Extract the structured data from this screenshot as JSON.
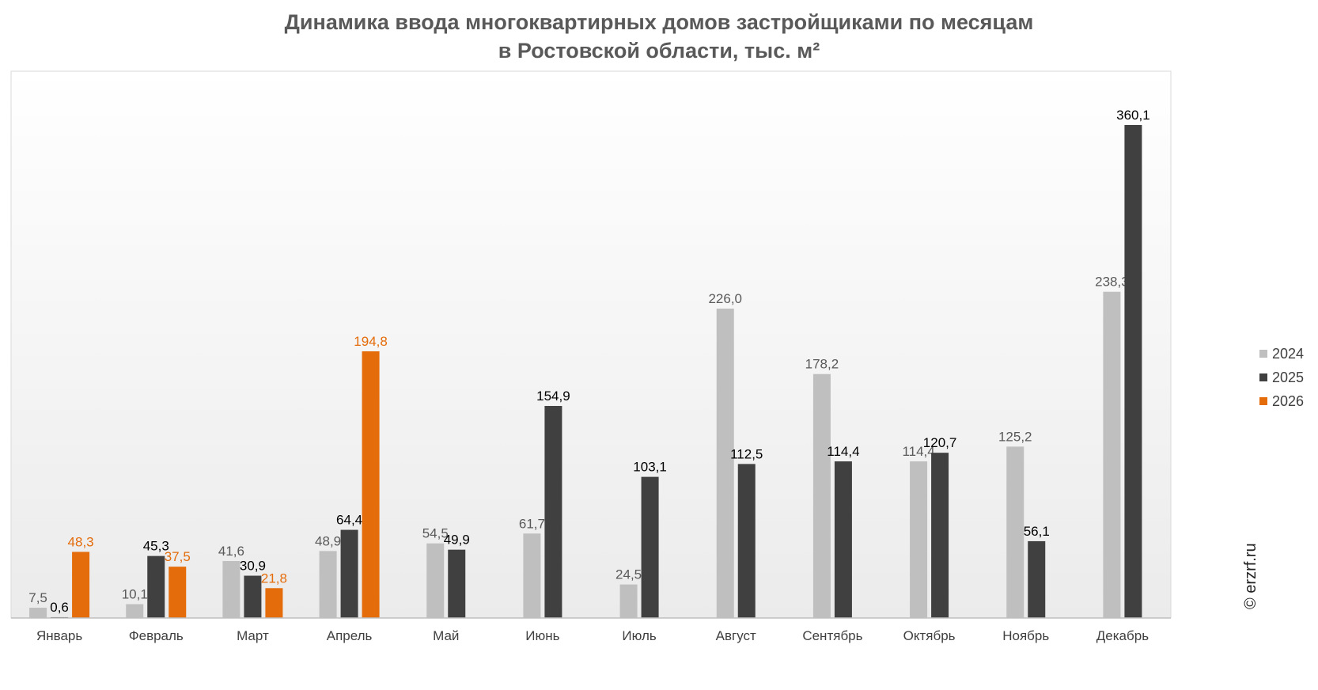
{
  "chart_data": {
    "type": "bar",
    "title_line1": "Динамика ввода многоквартирных домов застройщиками по месяцам",
    "title_line2": "в Ростовской области, тыс. м²",
    "categories": [
      "Январь",
      "Февраль",
      "Март",
      "Апрель",
      "Май",
      "Июнь",
      "Июль",
      "Август",
      "Сентябрь",
      "Октябрь",
      "Ноябрь",
      "Декабрь"
    ],
    "series": [
      {
        "name": "2024",
        "color": "#bfbfbf",
        "label_color": "#595959",
        "bold": false,
        "values": [
          7.5,
          10.1,
          41.6,
          48.9,
          54.5,
          61.7,
          24.5,
          226.0,
          178.2,
          114.4,
          125.2,
          238.3
        ]
      },
      {
        "name": "2025",
        "color": "#404040",
        "label_color": "#000000",
        "bold": true,
        "values": [
          0.6,
          45.3,
          30.9,
          64.4,
          49.9,
          154.9,
          103.1,
          112.5,
          114.4,
          120.7,
          56.1,
          360.1
        ]
      },
      {
        "name": "2026",
        "color": "#e46c0a",
        "label_color": "#e46c0a",
        "bold": false,
        "values": [
          48.3,
          37.5,
          21.8,
          194.8,
          null,
          null,
          null,
          null,
          null,
          null,
          null,
          null
        ]
      }
    ],
    "value_labels": [
      [
        "7,5",
        "10,1",
        "41,6",
        "48,9",
        "54,5",
        "61,7",
        "24,5",
        "226,0",
        "178,2",
        "114,4",
        "125,2",
        "238,3"
      ],
      [
        "0,6",
        "45,3",
        "30,9",
        "64,4",
        "49,9",
        "154,9",
        "103,1",
        "112,5",
        "114,4",
        "120,7",
        "56,1",
        "360,1"
      ],
      [
        "48,3",
        "37,5",
        "21,8",
        "194,8",
        null,
        null,
        null,
        null,
        null,
        null,
        null,
        null
      ]
    ],
    "ylim": [
      0,
      400
    ],
    "grid": false,
    "legend_position": "right"
  },
  "watermark": "© erzrf.ru"
}
